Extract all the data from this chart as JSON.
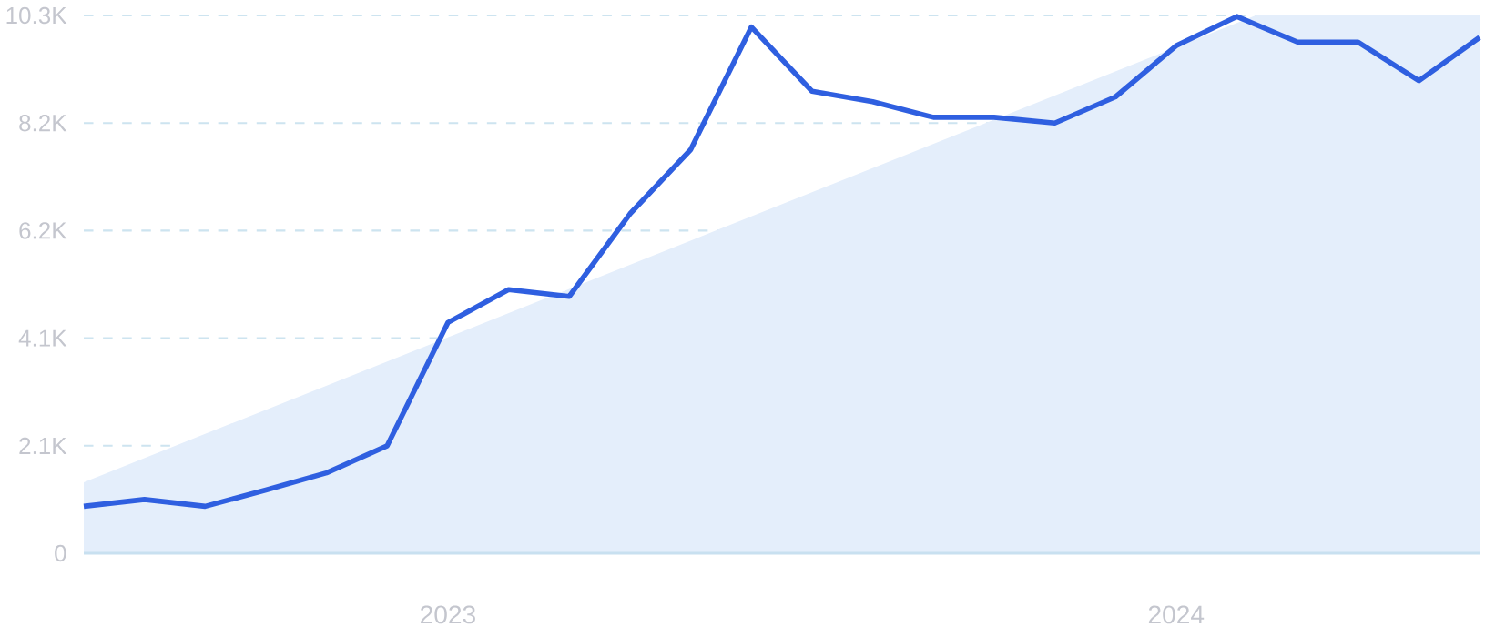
{
  "chart_data": {
    "type": "line",
    "series": [
      {
        "type": "area",
        "color": "#e4eefb",
        "x": [
          "2022-07",
          "2024-02-10",
          "2024-06"
        ],
        "values": [
          1360,
          10300,
          10300
        ]
      },
      {
        "color": "#2f5fe0",
        "x": [
          "2022-07",
          "2022-08",
          "2022-09",
          "2022-10",
          "2022-11",
          "2022-12",
          "2023-01",
          "2023-02",
          "2023-03",
          "2023-04",
          "2023-05",
          "2023-06",
          "2023-07",
          "2023-08",
          "2023-09",
          "2023-10",
          "2023-11",
          "2023-12",
          "2024-01",
          "2024-02",
          "2024-03",
          "2024-04",
          "2024-05",
          "2024-06"
        ],
        "values": [
          900,
          1030,
          900,
          1210,
          1540,
          2060,
          4420,
          5050,
          4920,
          6500,
          7730,
          10080,
          8850,
          8650,
          8350,
          8350,
          8240,
          8740,
          9720,
          10280,
          9790,
          9790,
          9050,
          9880
        ]
      }
    ],
    "xlim": [
      "2022-07",
      "2024-06"
    ],
    "xticks": [
      "2023",
      "2024"
    ],
    "ylim": [
      0,
      10300
    ],
    "yticks": [
      0,
      {
        "value": 2060,
        "label": "2.1K"
      },
      {
        "value": 4120,
        "label": "4.1K"
      },
      {
        "value": 6180,
        "label": "6.2K"
      },
      {
        "value": 8240,
        "label": "8.2K"
      },
      {
        "value": 10300,
        "label": "10.3K"
      }
    ],
    "grid": "y",
    "marker": "none",
    "line_style": "solid"
  }
}
